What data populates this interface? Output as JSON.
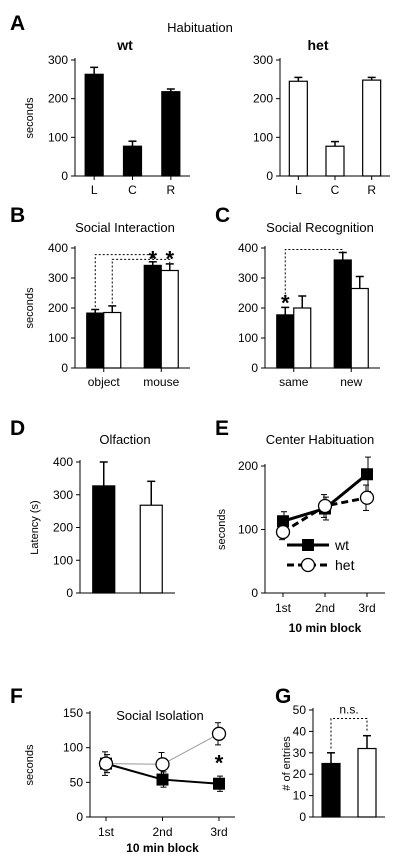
{
  "panel_labels": [
    "A",
    "B",
    "C",
    "D",
    "E",
    "F",
    "G"
  ],
  "chart_data": [
    {
      "id": "A1",
      "panel": "A",
      "type": "bar",
      "title": "Habituation",
      "subtitle": "wt",
      "ylabel": "seconds",
      "xlabel": "",
      "ylim": [
        0,
        300
      ],
      "yticks": [
        0,
        100,
        200,
        300
      ],
      "categories": [
        "L",
        "C",
        "R"
      ],
      "series": [
        {
          "name": "wt",
          "fill": "#000000",
          "values": [
            263,
            77,
            218
          ],
          "errors": [
            18,
            13,
            7
          ]
        }
      ],
      "annotations": []
    },
    {
      "id": "A2",
      "panel": "A",
      "type": "bar",
      "title": "",
      "subtitle": "het",
      "ylabel": "",
      "xlabel": "",
      "ylim": [
        0,
        300
      ],
      "yticks": [
        0,
        100,
        200,
        300
      ],
      "categories": [
        "L",
        "C",
        "R"
      ],
      "series": [
        {
          "name": "het",
          "fill": "#ffffff",
          "values": [
            245,
            77,
            248
          ],
          "errors": [
            10,
            12,
            7
          ]
        }
      ],
      "annotations": []
    },
    {
      "id": "B",
      "panel": "B",
      "type": "bar",
      "title": "Social Interaction",
      "subtitle": "",
      "ylabel": "seconds",
      "xlabel": "",
      "ylim": [
        0,
        400
      ],
      "yticks": [
        0,
        100,
        200,
        300,
        400
      ],
      "categories": [
        "object",
        "mouse"
      ],
      "series": [
        {
          "name": "wt",
          "fill": "#000000",
          "values": [
            183,
            342
          ],
          "errors": [
            12,
            12
          ]
        },
        {
          "name": "het",
          "fill": "#ffffff",
          "values": [
            185,
            325
          ],
          "errors": [
            22,
            22
          ]
        }
      ],
      "annotations": [
        {
          "type": "star",
          "text": "*",
          "category": 1,
          "series": 0,
          "y": 368
        },
        {
          "type": "star",
          "text": "*",
          "category": 1,
          "series": 1,
          "y": 368
        }
      ]
    },
    {
      "id": "C",
      "panel": "C",
      "type": "bar",
      "title": "Social Recognition",
      "subtitle": "",
      "ylabel": "",
      "xlabel": "",
      "ylim": [
        0,
        400
      ],
      "yticks": [
        0,
        100,
        200,
        300,
        400
      ],
      "categories": [
        "same",
        "new"
      ],
      "series": [
        {
          "name": "wt",
          "fill": "#000000",
          "values": [
            177,
            360
          ],
          "errors": [
            25,
            25
          ]
        },
        {
          "name": "het",
          "fill": "#ffffff",
          "values": [
            200,
            265
          ],
          "errors": [
            40,
            40
          ]
        }
      ],
      "annotations": [
        {
          "type": "star",
          "text": "*",
          "category": 0,
          "series": 0,
          "y": 222
        }
      ]
    },
    {
      "id": "D",
      "panel": "D",
      "type": "bar",
      "title": "Olfaction",
      "subtitle": "",
      "ylabel": "Latency (s)",
      "xlabel": "",
      "ylim": [
        0,
        400
      ],
      "yticks": [
        0,
        100,
        200,
        300,
        400
      ],
      "categories": [
        "wt",
        "het"
      ],
      "show_category_labels": false,
      "series": [
        {
          "name": "",
          "fill": [
            "#000000",
            "#ffffff"
          ],
          "values": [
            327,
            268
          ],
          "errors": [
            73,
            73
          ]
        }
      ],
      "annotations": []
    },
    {
      "id": "E",
      "panel": "E",
      "type": "line",
      "title": "Center Habituation",
      "subtitle": "",
      "ylabel": "seconds",
      "xlabel": "10 min block",
      "ylim": [
        0,
        200
      ],
      "yticks": [
        0,
        100,
        200
      ],
      "x": [
        "1st",
        "2nd",
        "3rd"
      ],
      "series": [
        {
          "name": "wt",
          "marker": "square",
          "dash": false,
          "width": 3,
          "values": [
            113,
            133,
            187
          ],
          "errors": [
            15,
            18,
            27
          ]
        },
        {
          "name": "het",
          "marker": "circle",
          "dash": true,
          "width": 3,
          "values": [
            96,
            137,
            150
          ],
          "errors": [
            12,
            18,
            20
          ]
        }
      ],
      "legend": {
        "position": "bottom-center",
        "entries": [
          "wt",
          "het"
        ]
      },
      "annotations": []
    },
    {
      "id": "F",
      "panel": "F",
      "type": "line",
      "title": "Social Isolation",
      "subtitle": "",
      "ylabel": "seconds",
      "xlabel": "10 min block",
      "ylim": [
        0,
        150
      ],
      "yticks": [
        0,
        50,
        100,
        150
      ],
      "x": [
        "1st",
        "2nd",
        "3rd"
      ],
      "series": [
        {
          "name": "wt",
          "marker": "square",
          "dash": false,
          "width": 2,
          "values": [
            77,
            54,
            48
          ],
          "errors": [
            13,
            11,
            11
          ]
        },
        {
          "name": "het",
          "marker": "circle",
          "dash": false,
          "width": 1,
          "color": "#999999",
          "values": [
            77,
            76,
            120
          ],
          "errors": [
            17,
            17,
            16
          ]
        }
      ],
      "annotations": [
        {
          "type": "star",
          "text": "*",
          "x_index": 2,
          "y": 80
        }
      ]
    },
    {
      "id": "G",
      "panel": "G",
      "type": "bar",
      "title": "",
      "subtitle": "",
      "ylabel": "# of entries",
      "xlabel": "",
      "ylim": [
        0,
        50
      ],
      "yticks": [
        0,
        10,
        20,
        30,
        40,
        50
      ],
      "categories": [
        "wt",
        "het"
      ],
      "show_category_labels": false,
      "series": [
        {
          "name": "",
          "fill": [
            "#000000",
            "#ffffff"
          ],
          "values": [
            25,
            32
          ],
          "errors": [
            5,
            6
          ]
        }
      ],
      "annotations": [
        {
          "type": "bracket",
          "text": "n.s.",
          "from": 0,
          "to": 1,
          "y": 46
        }
      ]
    }
  ]
}
